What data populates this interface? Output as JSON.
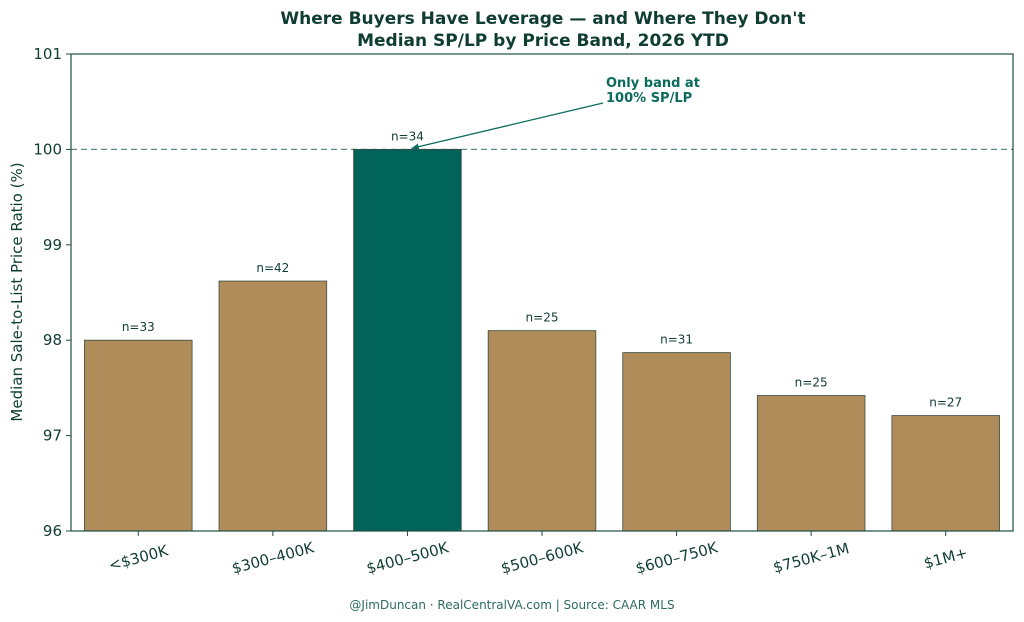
{
  "chart_data": {
    "type": "bar",
    "title": "Where Buyers Have Leverage — and Where They Don't",
    "subtitle": "Median SP/LP by Price Band, 2026 YTD",
    "xlabel": "",
    "ylabel": "Median Sale-to-List Price Ratio (%)",
    "ylim": [
      96,
      101
    ],
    "yticks": [
      "96",
      "97",
      "98",
      "99",
      "100",
      "101"
    ],
    "categories": [
      "<$300K",
      "$300–400K",
      "$400–500K",
      "$500–600K",
      "$600–750K",
      "$750K–1M",
      "$1M+"
    ],
    "values": [
      98.0,
      98.62,
      100.0,
      98.1,
      97.87,
      97.42,
      97.21
    ],
    "counts": [
      "n=33",
      "n=42",
      "n=34",
      "n=25",
      "n=31",
      "n=25",
      "n=27"
    ],
    "highlight_index": 2,
    "reference_line": 100,
    "annotation": {
      "lines": [
        "Only band at",
        "100% SP/LP"
      ],
      "target_index": 2
    },
    "grid": false,
    "legend": "none",
    "colors": {
      "bar": "#b08c5a",
      "highlight": "#00645a",
      "axis": "#1e4d44",
      "refline": "#5f8c84",
      "annotation": "#0a6b5c"
    }
  },
  "footer": "@JimDuncan · RealCentralVA.com | Source: CAAR MLS"
}
